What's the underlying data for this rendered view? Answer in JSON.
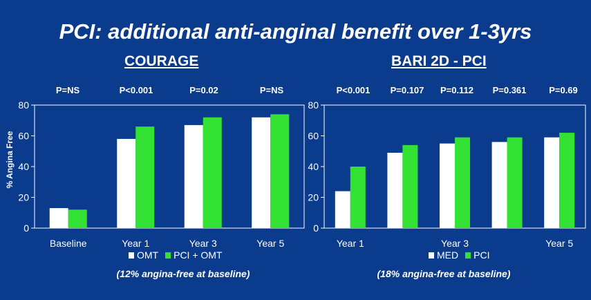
{
  "title": "PCI: additional anti-anginal benefit over 1-3yrs",
  "colors": {
    "background": "#0b3b8c",
    "white_bar": "#ffffff",
    "green_bar": "#33e233",
    "plot_border": "#ffffff"
  },
  "chart_data": [
    {
      "type": "bar",
      "title": "COURAGE",
      "ylabel": "% Angina Free",
      "ylim": [
        0,
        80
      ],
      "yticks": [
        "0",
        "20",
        "40",
        "60",
        "80"
      ],
      "categories": [
        "Baseline",
        "Year 1",
        "Year 3",
        "Year 5"
      ],
      "pvalues": [
        "P=NS",
        "P<0.001",
        "P=0.02",
        "P=NS"
      ],
      "series": [
        {
          "name": "OMT",
          "values": [
            13,
            58,
            67,
            72
          ]
        },
        {
          "name": "PCI + OMT",
          "values": [
            12,
            66,
            72,
            74
          ]
        }
      ],
      "note": "(12% angina-free at baseline)"
    },
    {
      "type": "bar",
      "title": "BARI 2D - PCI",
      "ylim": [
        0,
        80
      ],
      "yticks": [
        "0",
        "20",
        "40",
        "60",
        "80"
      ],
      "categories": [
        "Year 1",
        "",
        "Year 3",
        "",
        "Year 5"
      ],
      "pvalues": [
        "P<0.001",
        "P=0.107",
        "P=0.112",
        "P=0.361",
        "P=0.69"
      ],
      "series": [
        {
          "name": "MED",
          "values": [
            24,
            49,
            55,
            56,
            59
          ]
        },
        {
          "name": "PCI",
          "values": [
            40,
            54,
            59,
            59,
            62
          ]
        }
      ],
      "note": "(18% angina-free at baseline)"
    }
  ]
}
